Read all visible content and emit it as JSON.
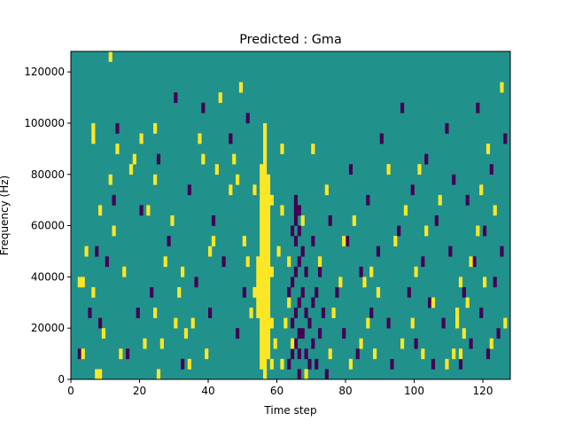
{
  "chart_data": {
    "type": "heatmap",
    "title": "Predicted : Gma",
    "xlabel": "Time step",
    "ylabel": "Frequency (Hz)",
    "xlim": [
      0,
      128
    ],
    "ylim": [
      0,
      128000
    ],
    "x_ticks": [
      0,
      20,
      40,
      60,
      80,
      100,
      120
    ],
    "x_tick_labels": [
      "0",
      "20",
      "40",
      "60",
      "80",
      "100",
      "120"
    ],
    "y_ticks": [
      0,
      20000,
      40000,
      60000,
      80000,
      100000,
      120000
    ],
    "y_tick_labels": [
      "0",
      "20000",
      "40000",
      "60000",
      "80000",
      "100000",
      "120000"
    ],
    "grid": false,
    "colormap": "viridis",
    "colors": {
      "background": "#21918c",
      "low": "#440154",
      "high": "#fde725"
    },
    "frequency_bin_hz": 4000,
    "time_bins": 128,
    "frequency_bins": 32,
    "high_cells": [
      [
        3,
        10
      ],
      [
        4,
        3
      ],
      [
        4,
        10
      ],
      [
        5,
        13
      ],
      [
        7,
        9
      ],
      [
        7,
        24
      ],
      [
        7,
        25
      ],
      [
        8,
        1
      ],
      [
        9,
        1
      ],
      [
        9,
        17
      ],
      [
        10,
        5
      ],
      [
        12,
        20
      ],
      [
        12,
        32
      ],
      [
        13,
        15
      ],
      [
        14,
        23
      ],
      [
        15,
        3
      ],
      [
        16,
        11
      ],
      [
        18,
        21
      ],
      [
        19,
        22
      ],
      [
        21,
        24
      ],
      [
        22,
        4
      ],
      [
        23,
        17
      ],
      [
        25,
        7
      ],
      [
        25,
        20
      ],
      [
        25,
        25
      ],
      [
        26,
        1
      ],
      [
        27,
        4
      ],
      [
        28,
        12
      ],
      [
        30,
        16
      ],
      [
        31,
        6
      ],
      [
        32,
        9
      ],
      [
        33,
        11
      ],
      [
        34,
        5
      ],
      [
        35,
        2
      ],
      [
        36,
        6
      ],
      [
        38,
        24
      ],
      [
        39,
        22
      ],
      [
        40,
        3
      ],
      [
        41,
        13
      ],
      [
        42,
        14
      ],
      [
        43,
        21
      ],
      [
        44,
        28
      ],
      [
        47,
        19
      ],
      [
        48,
        22
      ],
      [
        49,
        20
      ],
      [
        50,
        29
      ],
      [
        51,
        14
      ],
      [
        52,
        12
      ],
      [
        53,
        7
      ],
      [
        54,
        19
      ],
      [
        54,
        9
      ],
      [
        55,
        7
      ],
      [
        55,
        8
      ],
      [
        55,
        9
      ],
      [
        55,
        10
      ],
      [
        55,
        11
      ],
      [
        55,
        12
      ],
      [
        56,
        2
      ],
      [
        56,
        3
      ],
      [
        56,
        4
      ],
      [
        56,
        5
      ],
      [
        56,
        6
      ],
      [
        56,
        7
      ],
      [
        56,
        8
      ],
      [
        56,
        9
      ],
      [
        56,
        10
      ],
      [
        56,
        11
      ],
      [
        56,
        12
      ],
      [
        56,
        13
      ],
      [
        56,
        14
      ],
      [
        56,
        15
      ],
      [
        56,
        16
      ],
      [
        56,
        17
      ],
      [
        56,
        18
      ],
      [
        56,
        19
      ],
      [
        56,
        20
      ],
      [
        56,
        21
      ],
      [
        57,
        1
      ],
      [
        57,
        2
      ],
      [
        57,
        3
      ],
      [
        57,
        4
      ],
      [
        57,
        5
      ],
      [
        57,
        6
      ],
      [
        57,
        7
      ],
      [
        57,
        8
      ],
      [
        57,
        9
      ],
      [
        57,
        10
      ],
      [
        57,
        11
      ],
      [
        57,
        12
      ],
      [
        57,
        13
      ],
      [
        57,
        14
      ],
      [
        57,
        15
      ],
      [
        57,
        16
      ],
      [
        57,
        17
      ],
      [
        57,
        18
      ],
      [
        57,
        19
      ],
      [
        57,
        20
      ],
      [
        57,
        21
      ],
      [
        57,
        22
      ],
      [
        57,
        23
      ],
      [
        57,
        24
      ],
      [
        57,
        25
      ],
      [
        58,
        3
      ],
      [
        58,
        4
      ],
      [
        58,
        5
      ],
      [
        58,
        6
      ],
      [
        58,
        7
      ],
      [
        58,
        8
      ],
      [
        58,
        9
      ],
      [
        58,
        10
      ],
      [
        58,
        11
      ],
      [
        58,
        12
      ],
      [
        58,
        13
      ],
      [
        58,
        14
      ],
      [
        58,
        15
      ],
      [
        58,
        16
      ],
      [
        58,
        17
      ],
      [
        58,
        18
      ],
      [
        58,
        19
      ],
      [
        58,
        20
      ],
      [
        59,
        2
      ],
      [
        59,
        6
      ],
      [
        59,
        11
      ],
      [
        59,
        18
      ],
      [
        60,
        4
      ],
      [
        61,
        13
      ],
      [
        62,
        2
      ],
      [
        62,
        17
      ],
      [
        62,
        23
      ],
      [
        63,
        6
      ],
      [
        64,
        8
      ],
      [
        64,
        12
      ],
      [
        65,
        4
      ],
      [
        68,
        16
      ],
      [
        69,
        1
      ],
      [
        71,
        23
      ],
      [
        73,
        12
      ],
      [
        75,
        19
      ],
      [
        76,
        3
      ],
      [
        77,
        7
      ],
      [
        79,
        10
      ],
      [
        80,
        14
      ],
      [
        82,
        2
      ],
      [
        83,
        16
      ],
      [
        85,
        4
      ],
      [
        86,
        10
      ],
      [
        87,
        6
      ],
      [
        88,
        11
      ],
      [
        89,
        3
      ],
      [
        90,
        9
      ],
      [
        93,
        21
      ],
      [
        95,
        14
      ],
      [
        97,
        4
      ],
      [
        98,
        17
      ],
      [
        100,
        6
      ],
      [
        101,
        11
      ],
      [
        102,
        21
      ],
      [
        103,
        3
      ],
      [
        104,
        15
      ],
      [
        106,
        8
      ],
      [
        108,
        18
      ],
      [
        110,
        2
      ],
      [
        112,
        3
      ],
      [
        113,
        6
      ],
      [
        113,
        7
      ],
      [
        114,
        3
      ],
      [
        114,
        10
      ],
      [
        115,
        5
      ],
      [
        116,
        8
      ],
      [
        117,
        12
      ],
      [
        119,
        15
      ],
      [
        120,
        19
      ],
      [
        121,
        10
      ],
      [
        122,
        23
      ],
      [
        123,
        4
      ],
      [
        124,
        17
      ],
      [
        126,
        29
      ],
      [
        127,
        6
      ]
    ],
    "low_cells": [
      [
        3,
        3
      ],
      [
        6,
        7
      ],
      [
        8,
        13
      ],
      [
        9,
        6
      ],
      [
        11,
        12
      ],
      [
        13,
        18
      ],
      [
        14,
        25
      ],
      [
        17,
        3
      ],
      [
        20,
        7
      ],
      [
        21,
        17
      ],
      [
        24,
        9
      ],
      [
        26,
        22
      ],
      [
        29,
        14
      ],
      [
        31,
        28
      ],
      [
        33,
        2
      ],
      [
        35,
        19
      ],
      [
        37,
        10
      ],
      [
        39,
        27
      ],
      [
        41,
        7
      ],
      [
        42,
        16
      ],
      [
        45,
        12
      ],
      [
        47,
        24
      ],
      [
        49,
        5
      ],
      [
        51,
        9
      ],
      [
        52,
        26
      ],
      [
        64,
        2
      ],
      [
        64,
        9
      ],
      [
        65,
        3
      ],
      [
        65,
        6
      ],
      [
        65,
        10
      ],
      [
        65,
        15
      ],
      [
        66,
        4
      ],
      [
        66,
        7
      ],
      [
        66,
        11
      ],
      [
        66,
        14
      ],
      [
        66,
        16
      ],
      [
        66,
        17
      ],
      [
        66,
        18
      ],
      [
        67,
        1
      ],
      [
        67,
        3
      ],
      [
        67,
        5
      ],
      [
        67,
        8
      ],
      [
        67,
        12
      ],
      [
        67,
        15
      ],
      [
        67,
        17
      ],
      [
        68,
        5
      ],
      [
        68,
        9
      ],
      [
        68,
        13
      ],
      [
        69,
        3
      ],
      [
        69,
        7
      ],
      [
        69,
        11
      ],
      [
        70,
        2
      ],
      [
        70,
        6
      ],
      [
        71,
        4
      ],
      [
        71,
        8
      ],
      [
        71,
        14
      ],
      [
        72,
        2
      ],
      [
        72,
        9
      ],
      [
        73,
        5
      ],
      [
        73,
        11
      ],
      [
        74,
        7
      ],
      [
        75,
        1
      ],
      [
        76,
        16
      ],
      [
        78,
        9
      ],
      [
        80,
        5
      ],
      [
        81,
        14
      ],
      [
        82,
        21
      ],
      [
        84,
        3
      ],
      [
        85,
        11
      ],
      [
        87,
        18
      ],
      [
        88,
        7
      ],
      [
        90,
        13
      ],
      [
        91,
        24
      ],
      [
        93,
        6
      ],
      [
        94,
        2
      ],
      [
        96,
        15
      ],
      [
        97,
        27
      ],
      [
        99,
        9
      ],
      [
        100,
        19
      ],
      [
        101,
        4
      ],
      [
        103,
        12
      ],
      [
        104,
        22
      ],
      [
        105,
        8
      ],
      [
        106,
        2
      ],
      [
        107,
        16
      ],
      [
        109,
        6
      ],
      [
        110,
        25
      ],
      [
        111,
        13
      ],
      [
        112,
        20
      ],
      [
        114,
        2
      ],
      [
        115,
        9
      ],
      [
        116,
        18
      ],
      [
        117,
        4
      ],
      [
        118,
        12
      ],
      [
        119,
        27
      ],
      [
        120,
        7
      ],
      [
        121,
        15
      ],
      [
        122,
        3
      ],
      [
        123,
        21
      ],
      [
        124,
        10
      ],
      [
        125,
        5
      ],
      [
        126,
        13
      ],
      [
        127,
        24
      ]
    ]
  }
}
